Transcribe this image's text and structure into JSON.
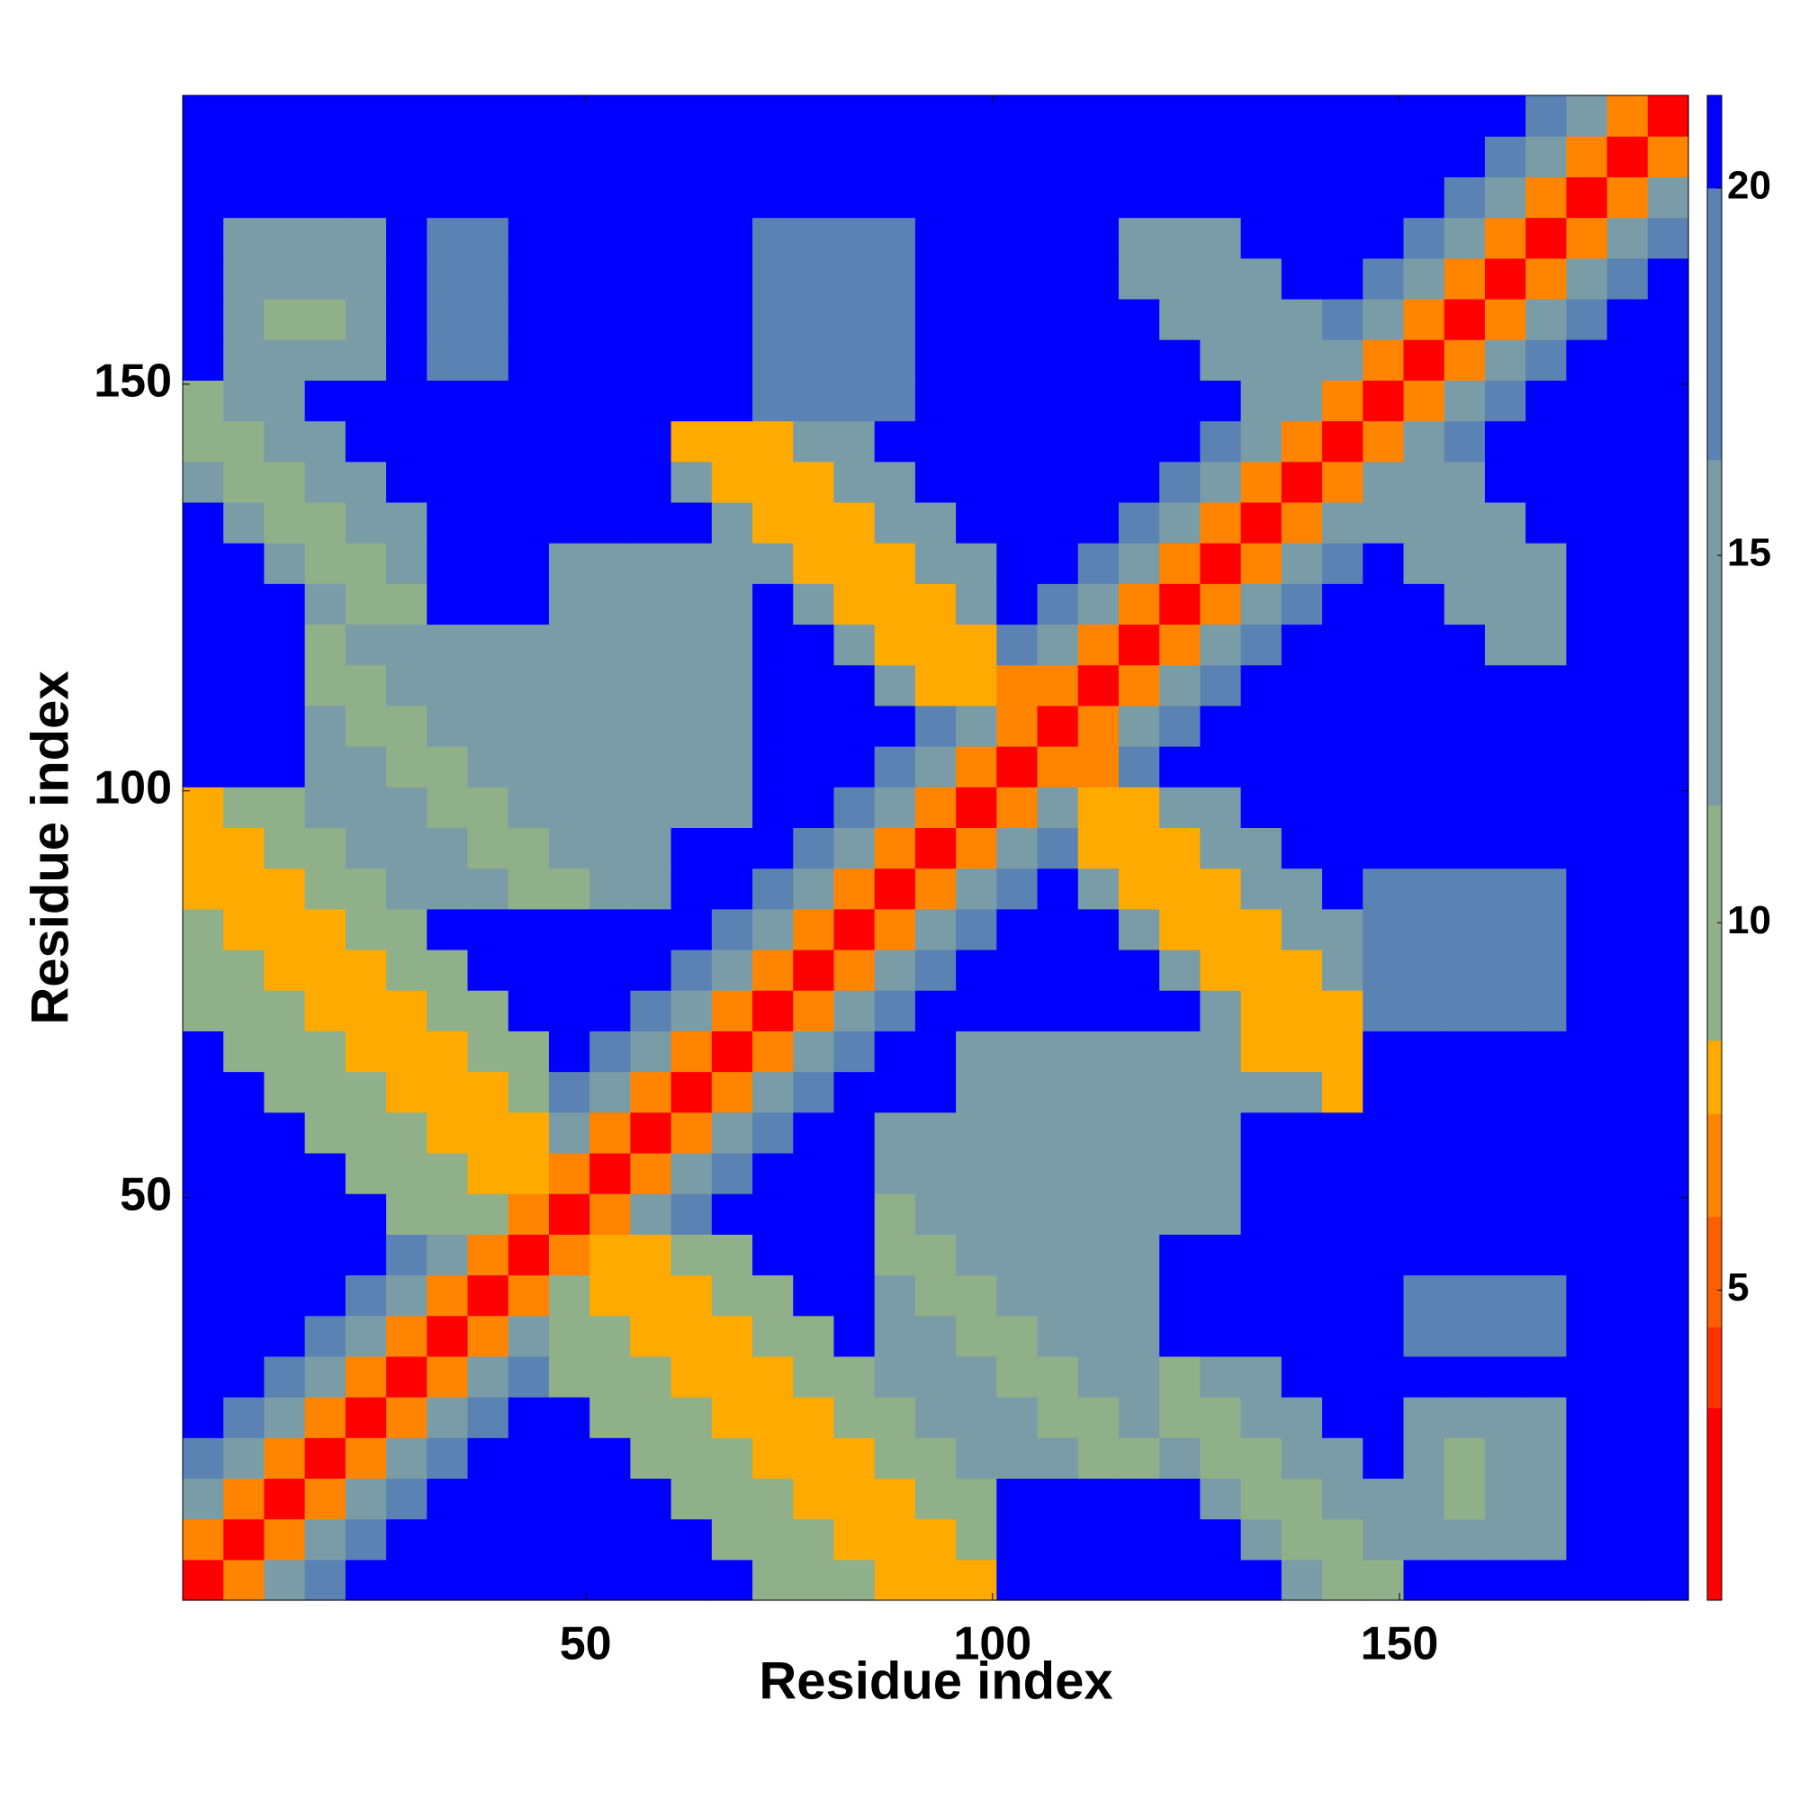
{
  "chart_data": {
    "type": "heatmap",
    "xlabel": "Residue index",
    "ylabel": "Residue index",
    "xlim": [
      0.5,
      185.5
    ],
    "ylim": [
      0.5,
      185.5
    ],
    "xticks": [
      50,
      100,
      150
    ],
    "yticks": [
      50,
      100,
      150
    ],
    "x": [
      3,
      8,
      13,
      18,
      23,
      28,
      33,
      38,
      43,
      48,
      53,
      58,
      63,
      68,
      73,
      78,
      83,
      88,
      93,
      98,
      103,
      108,
      113,
      118,
      123,
      128,
      133,
      138,
      143,
      148,
      153,
      158,
      163,
      168,
      173,
      178,
      183
    ],
    "y": [
      3,
      8,
      13,
      18,
      23,
      28,
      33,
      38,
      43,
      48,
      53,
      58,
      63,
      68,
      73,
      78,
      83,
      88,
      93,
      98,
      103,
      108,
      113,
      118,
      123,
      128,
      133,
      138,
      143,
      148,
      153,
      158,
      163,
      168,
      173,
      178,
      183
    ],
    "colorbar": {
      "bounds": [
        0.78,
        3.4,
        4.5,
        6,
        7.4,
        8.4,
        11.6,
        16.3,
        20,
        21.26
      ],
      "colors": [
        "#ff0000",
        "#ff3300",
        "#ff5e00",
        "#ff8400",
        "#ffaa00",
        "#90b08a",
        "#7a9ca6",
        "#5a83b4",
        "#0000ff"
      ],
      "ticks": [
        5,
        10,
        15,
        20
      ]
    },
    "z": [
      [
        2,
        7,
        12,
        17,
        22,
        22,
        22,
        22,
        22,
        22,
        22,
        22,
        22,
        22,
        11,
        11,
        11,
        8,
        8,
        8,
        22,
        22,
        22,
        22,
        22,
        22,
        22,
        12,
        9,
        9,
        22,
        22,
        22,
        22,
        22,
        22,
        22
      ],
      [
        7,
        2,
        7,
        12,
        17,
        22,
        22,
        22,
        22,
        22,
        22,
        22,
        22,
        11,
        11,
        11,
        8,
        8,
        8,
        11,
        22,
        22,
        22,
        22,
        22,
        22,
        12,
        9,
        9,
        12,
        15,
        15,
        15,
        15,
        22,
        22,
        22
      ],
      [
        12,
        7,
        2,
        7,
        12,
        17,
        22,
        22,
        22,
        22,
        22,
        22,
        11,
        11,
        11,
        8,
        8,
        8,
        11,
        11,
        22,
        22,
        22,
        22,
        22,
        12,
        9,
        9,
        12,
        12,
        15,
        9,
        15,
        15,
        22,
        22,
        22
      ],
      [
        17,
        12,
        7,
        2,
        7,
        12,
        17,
        22,
        22,
        22,
        22,
        11,
        11,
        11,
        8,
        8,
        8,
        11,
        11,
        14,
        14,
        14,
        10,
        10,
        12,
        9,
        9,
        12,
        12,
        22,
        15,
        9,
        15,
        15,
        22,
        22,
        22
      ],
      [
        22,
        17,
        12,
        7,
        2,
        7,
        12,
        17,
        22,
        22,
        11,
        11,
        11,
        8,
        8,
        8,
        11,
        11,
        14,
        14,
        14,
        10,
        10,
        14,
        9,
        9,
        12,
        12,
        22,
        22,
        15,
        15,
        15,
        15,
        22,
        22,
        22
      ],
      [
        22,
        22,
        17,
        12,
        7,
        2,
        7,
        12,
        17,
        11,
        11,
        11,
        8,
        8,
        8,
        11,
        11,
        14,
        14,
        14,
        10,
        10,
        14,
        14,
        9,
        12,
        12,
        22,
        22,
        22,
        22,
        22,
        22,
        22,
        22,
        22,
        22
      ],
      [
        22,
        22,
        22,
        17,
        12,
        7,
        2,
        7,
        12,
        11,
        11,
        8,
        8,
        8,
        11,
        11,
        22,
        14,
        14,
        10,
        10,
        14,
        14,
        14,
        22,
        22,
        22,
        22,
        22,
        22,
        18,
        18,
        18,
        18,
        22,
        22,
        22
      ],
      [
        22,
        22,
        22,
        22,
        17,
        12,
        7,
        2,
        7,
        11,
        8,
        8,
        8,
        11,
        11,
        22,
        22,
        14,
        10,
        10,
        14,
        14,
        14,
        14,
        22,
        22,
        22,
        22,
        22,
        22,
        18,
        18,
        18,
        18,
        22,
        22,
        22
      ],
      [
        22,
        22,
        22,
        22,
        22,
        17,
        12,
        7,
        2,
        7,
        8,
        8,
        11,
        11,
        22,
        22,
        22,
        10,
        10,
        14,
        14,
        14,
        14,
        14,
        22,
        22,
        22,
        22,
        22,
        22,
        22,
        22,
        22,
        22,
        22,
        22,
        22
      ],
      [
        22,
        22,
        22,
        22,
        22,
        11,
        11,
        11,
        7,
        2,
        7,
        12,
        17,
        22,
        22,
        22,
        22,
        10,
        14,
        14,
        14,
        14,
        14,
        14,
        16,
        16,
        22,
        22,
        22,
        22,
        22,
        22,
        22,
        22,
        22,
        22,
        22
      ],
      [
        22,
        22,
        22,
        22,
        11,
        11,
        11,
        8,
        8,
        7,
        2,
        7,
        12,
        17,
        22,
        22,
        22,
        14,
        14,
        14,
        14,
        14,
        14,
        14,
        16,
        16,
        22,
        22,
        22,
        22,
        22,
        22,
        22,
        22,
        22,
        22,
        22
      ],
      [
        22,
        22,
        22,
        11,
        11,
        11,
        8,
        8,
        8,
        12,
        7,
        2,
        7,
        12,
        17,
        22,
        22,
        14,
        14,
        14,
        14,
        14,
        14,
        14,
        16,
        16,
        22,
        22,
        22,
        22,
        22,
        22,
        22,
        22,
        22,
        22,
        22
      ],
      [
        22,
        22,
        11,
        11,
        11,
        8,
        8,
        8,
        11,
        17,
        12,
        7,
        2,
        7,
        12,
        17,
        22,
        22,
        22,
        16,
        16,
        16,
        16,
        16,
        16,
        16,
        12,
        12,
        8,
        22,
        22,
        22,
        22,
        22,
        22,
        22,
        22
      ],
      [
        22,
        11,
        11,
        11,
        8,
        8,
        8,
        11,
        11,
        22,
        17,
        12,
        7,
        2,
        7,
        12,
        17,
        22,
        22,
        16,
        16,
        16,
        16,
        16,
        16,
        16,
        8,
        8,
        8,
        22,
        22,
        22,
        22,
        22,
        22,
        22,
        22
      ],
      [
        11,
        11,
        11,
        8,
        8,
        8,
        11,
        11,
        22,
        22,
        22,
        17,
        12,
        7,
        2,
        7,
        12,
        17,
        22,
        22,
        22,
        22,
        22,
        22,
        22,
        12,
        8,
        8,
        8,
        18,
        18,
        18,
        18,
        18,
        22,
        22,
        22
      ],
      [
        11,
        11,
        8,
        8,
        8,
        11,
        11,
        22,
        22,
        22,
        22,
        22,
        17,
        12,
        7,
        2,
        7,
        12,
        17,
        22,
        22,
        22,
        22,
        22,
        12,
        8,
        8,
        8,
        12,
        18,
        18,
        18,
        18,
        18,
        22,
        22,
        22
      ],
      [
        11,
        8,
        8,
        8,
        11,
        11,
        22,
        22,
        22,
        22,
        22,
        22,
        22,
        17,
        12,
        7,
        2,
        7,
        12,
        17,
        22,
        22,
        22,
        12,
        8,
        8,
        8,
        12,
        12,
        18,
        18,
        18,
        18,
        18,
        22,
        22,
        22
      ],
      [
        8,
        8,
        8,
        11,
        11,
        14,
        14,
        14,
        10,
        10,
        14,
        14,
        22,
        22,
        17,
        12,
        7,
        2,
        7,
        12,
        17,
        22,
        12,
        8,
        8,
        8,
        12,
        12,
        22,
        18,
        18,
        18,
        18,
        18,
        22,
        22,
        22
      ],
      [
        8,
        8,
        11,
        11,
        14,
        14,
        14,
        10,
        10,
        14,
        14,
        14,
        22,
        22,
        22,
        17,
        12,
        7,
        2,
        7,
        12,
        17,
        8,
        8,
        8,
        12,
        12,
        22,
        22,
        22,
        22,
        22,
        22,
        22,
        22,
        22,
        22
      ],
      [
        8,
        11,
        11,
        14,
        14,
        14,
        10,
        10,
        14,
        14,
        14,
        14,
        16,
        16,
        22,
        22,
        17,
        12,
        7,
        2,
        7,
        12,
        8,
        8,
        12,
        12,
        22,
        22,
        22,
        22,
        22,
        22,
        22,
        22,
        22,
        22,
        22
      ],
      [
        22,
        22,
        22,
        14,
        14,
        10,
        10,
        14,
        14,
        14,
        14,
        14,
        16,
        16,
        22,
        22,
        22,
        17,
        12,
        7,
        2,
        7,
        7,
        17,
        22,
        22,
        22,
        22,
        22,
        22,
        22,
        22,
        22,
        22,
        22,
        22,
        22
      ],
      [
        22,
        22,
        22,
        14,
        10,
        10,
        14,
        14,
        14,
        14,
        14,
        14,
        16,
        16,
        22,
        22,
        22,
        22,
        17,
        12,
        7,
        2,
        7,
        12,
        17,
        22,
        22,
        22,
        22,
        22,
        22,
        22,
        22,
        22,
        22,
        22,
        22
      ],
      [
        22,
        22,
        22,
        10,
        10,
        14,
        14,
        14,
        14,
        14,
        14,
        14,
        16,
        16,
        22,
        22,
        22,
        12,
        8,
        8,
        7,
        7,
        2,
        7,
        12,
        17,
        22,
        22,
        22,
        22,
        22,
        22,
        22,
        22,
        22,
        22,
        22
      ],
      [
        22,
        22,
        22,
        10,
        14,
        14,
        14,
        14,
        14,
        14,
        14,
        14,
        16,
        16,
        22,
        22,
        12,
        8,
        8,
        8,
        17,
        12,
        7,
        2,
        7,
        12,
        17,
        22,
        22,
        22,
        22,
        22,
        13,
        13,
        22,
        22,
        22
      ],
      [
        22,
        22,
        22,
        12,
        9,
        9,
        22,
        22,
        22,
        16,
        16,
        16,
        16,
        16,
        22,
        12,
        8,
        8,
        8,
        12,
        22,
        17,
        12,
        7,
        2,
        7,
        12,
        17,
        22,
        22,
        22,
        13,
        13,
        13,
        22,
        22,
        22
      ],
      [
        22,
        22,
        12,
        9,
        9,
        12,
        22,
        22,
        22,
        16,
        16,
        16,
        16,
        16,
        12,
        8,
        8,
        8,
        12,
        12,
        22,
        22,
        17,
        12,
        7,
        2,
        7,
        12,
        17,
        22,
        13,
        13,
        13,
        13,
        22,
        22,
        22
      ],
      [
        22,
        12,
        9,
        9,
        12,
        12,
        22,
        22,
        22,
        22,
        22,
        22,
        22,
        12,
        8,
        8,
        8,
        12,
        12,
        22,
        22,
        22,
        22,
        17,
        12,
        7,
        2,
        7,
        12,
        13,
        13,
        13,
        13,
        22,
        22,
        22,
        22
      ],
      [
        12,
        9,
        9,
        12,
        12,
        22,
        22,
        22,
        22,
        22,
        22,
        22,
        12,
        8,
        8,
        8,
        12,
        12,
        22,
        22,
        22,
        22,
        22,
        22,
        17,
        12,
        7,
        2,
        7,
        12,
        13,
        13,
        22,
        22,
        22,
        22,
        22
      ],
      [
        9,
        9,
        12,
        12,
        22,
        22,
        22,
        22,
        22,
        22,
        22,
        22,
        8,
        8,
        8,
        12,
        12,
        22,
        22,
        22,
        22,
        22,
        22,
        22,
        22,
        17,
        12,
        7,
        2,
        7,
        12,
        17,
        22,
        22,
        22,
        22,
        22
      ],
      [
        9,
        12,
        12,
        22,
        22,
        22,
        22,
        22,
        22,
        22,
        22,
        22,
        22,
        22,
        18,
        18,
        18,
        18,
        22,
        22,
        22,
        22,
        22,
        22,
        22,
        22,
        13,
        12,
        7,
        2,
        7,
        12,
        17,
        22,
        22,
        22,
        22
      ],
      [
        22,
        15,
        15,
        15,
        15,
        22,
        18,
        18,
        22,
        22,
        22,
        22,
        22,
        22,
        18,
        18,
        18,
        18,
        22,
        22,
        22,
        22,
        22,
        22,
        22,
        13,
        13,
        13,
        12,
        7,
        2,
        7,
        12,
        17,
        22,
        22,
        22
      ],
      [
        22,
        15,
        9,
        9,
        15,
        22,
        18,
        18,
        22,
        22,
        22,
        22,
        22,
        22,
        18,
        18,
        18,
        18,
        22,
        22,
        22,
        22,
        22,
        22,
        13,
        13,
        13,
        13,
        17,
        12,
        7,
        2,
        7,
        12,
        17,
        22,
        22
      ],
      [
        22,
        15,
        15,
        15,
        15,
        22,
        18,
        18,
        22,
        22,
        22,
        22,
        22,
        22,
        18,
        18,
        18,
        18,
        22,
        22,
        22,
        22,
        22,
        13,
        13,
        13,
        13,
        22,
        22,
        17,
        12,
        7,
        2,
        7,
        12,
        17,
        22
      ],
      [
        22,
        15,
        15,
        15,
        15,
        22,
        18,
        18,
        22,
        22,
        22,
        22,
        22,
        22,
        18,
        18,
        18,
        18,
        22,
        22,
        22,
        22,
        22,
        13,
        13,
        13,
        22,
        22,
        22,
        22,
        17,
        12,
        7,
        2,
        7,
        12,
        17
      ],
      [
        22,
        22,
        22,
        22,
        22,
        22,
        22,
        22,
        22,
        22,
        22,
        22,
        22,
        22,
        22,
        22,
        22,
        22,
        22,
        22,
        22,
        22,
        22,
        22,
        22,
        22,
        22,
        22,
        22,
        22,
        22,
        17,
        12,
        7,
        2,
        7,
        12
      ],
      [
        22,
        22,
        22,
        22,
        22,
        22,
        22,
        22,
        22,
        22,
        22,
        22,
        22,
        22,
        22,
        22,
        22,
        22,
        22,
        22,
        22,
        22,
        22,
        22,
        22,
        22,
        22,
        22,
        22,
        22,
        22,
        22,
        17,
        12,
        7,
        2,
        7
      ],
      [
        22,
        22,
        22,
        22,
        22,
        22,
        22,
        22,
        22,
        22,
        22,
        22,
        22,
        22,
        22,
        22,
        22,
        22,
        22,
        22,
        22,
        22,
        22,
        22,
        22,
        22,
        22,
        22,
        22,
        22,
        22,
        22,
        22,
        17,
        12,
        7,
        2
      ]
    ]
  }
}
